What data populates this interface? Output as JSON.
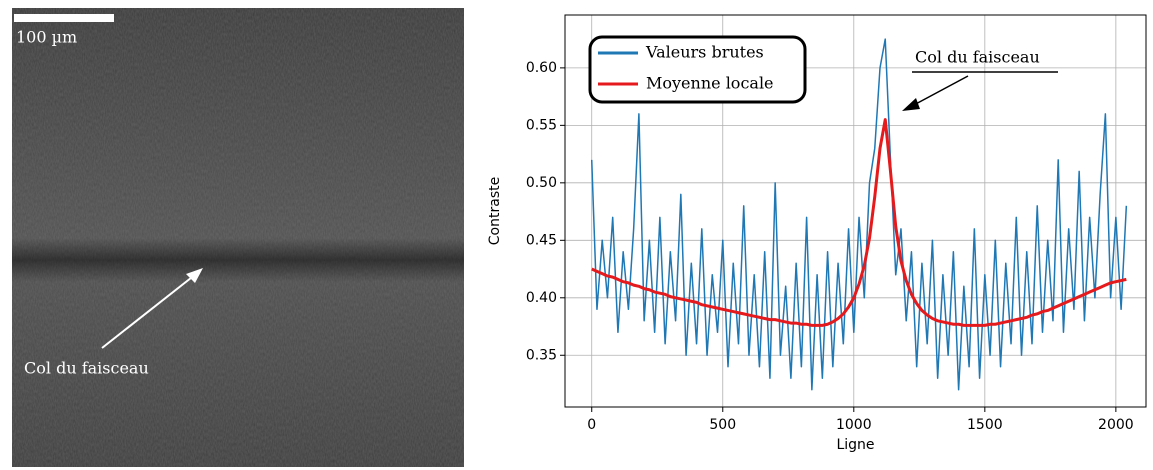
{
  "image": {
    "scale_bar": "100 µm",
    "annotation": "Col du faisceau"
  },
  "chart_data": {
    "type": "line",
    "xlabel": "Ligne",
    "ylabel": "Contraste",
    "annotation": "Col du faisceau",
    "legend": "upper left",
    "grid": true,
    "xlim": [
      -102,
      2115
    ],
    "ylim": [
      0.305,
      0.646
    ],
    "xticks": [
      0,
      500,
      1000,
      1500,
      2000
    ],
    "yticks": [
      0.35,
      {
        "value": 0.4,
        "label": "0.40"
      },
      0.45,
      {
        "value": 0.5,
        "label": "0.50"
      },
      0.55,
      {
        "value": 0.6,
        "label": "0.60"
      }
    ],
    "x": [
      0,
      20,
      40,
      60,
      80,
      100,
      120,
      140,
      160,
      180,
      200,
      220,
      240,
      260,
      280,
      300,
      320,
      340,
      360,
      380,
      400,
      420,
      440,
      460,
      480,
      500,
      520,
      540,
      560,
      580,
      600,
      620,
      640,
      660,
      680,
      700,
      720,
      740,
      760,
      780,
      800,
      820,
      840,
      860,
      880,
      900,
      920,
      940,
      960,
      980,
      1000,
      1020,
      1040,
      1060,
      1080,
      1100,
      1120,
      1140,
      1160,
      1180,
      1200,
      1220,
      1240,
      1260,
      1280,
      1300,
      1320,
      1340,
      1360,
      1380,
      1400,
      1420,
      1440,
      1460,
      1480,
      1500,
      1520,
      1540,
      1560,
      1580,
      1600,
      1620,
      1640,
      1660,
      1680,
      1700,
      1720,
      1740,
      1760,
      1780,
      1800,
      1820,
      1840,
      1860,
      1880,
      1900,
      1920,
      1940,
      1960,
      1980,
      2000,
      2020,
      2040
    ],
    "series": [
      {
        "name": "Valeurs brutes",
        "color": "#1f77b4",
        "width": 1.5,
        "values": [
          0.52,
          0.39,
          0.45,
          0.4,
          0.47,
          0.37,
          0.44,
          0.39,
          0.46,
          0.56,
          0.38,
          0.45,
          0.37,
          0.47,
          0.36,
          0.44,
          0.38,
          0.49,
          0.35,
          0.43,
          0.36,
          0.46,
          0.35,
          0.42,
          0.37,
          0.45,
          0.34,
          0.43,
          0.36,
          0.48,
          0.35,
          0.42,
          0.34,
          0.44,
          0.33,
          0.5,
          0.35,
          0.41,
          0.33,
          0.43,
          0.34,
          0.47,
          0.32,
          0.42,
          0.33,
          0.44,
          0.34,
          0.43,
          0.36,
          0.46,
          0.37,
          0.47,
          0.4,
          0.5,
          0.53,
          0.6,
          0.625,
          0.52,
          0.42,
          0.46,
          0.38,
          0.44,
          0.34,
          0.43,
          0.36,
          0.45,
          0.33,
          0.42,
          0.35,
          0.44,
          0.32,
          0.41,
          0.34,
          0.46,
          0.33,
          0.42,
          0.35,
          0.45,
          0.34,
          0.43,
          0.36,
          0.47,
          0.35,
          0.44,
          0.36,
          0.48,
          0.37,
          0.45,
          0.38,
          0.52,
          0.37,
          0.46,
          0.39,
          0.51,
          0.38,
          0.47,
          0.4,
          0.49,
          0.56,
          0.4,
          0.47,
          0.39,
          0.48
        ]
      },
      {
        "name": "Moyenne locale",
        "color": "#e41a1c",
        "width": 3,
        "values": [
          0.425,
          0.423,
          0.421,
          0.419,
          0.418,
          0.416,
          0.414,
          0.413,
          0.411,
          0.41,
          0.408,
          0.407,
          0.405,
          0.404,
          0.403,
          0.401,
          0.4,
          0.399,
          0.398,
          0.397,
          0.396,
          0.394,
          0.393,
          0.392,
          0.391,
          0.39,
          0.389,
          0.388,
          0.387,
          0.386,
          0.385,
          0.384,
          0.383,
          0.382,
          0.381,
          0.381,
          0.38,
          0.379,
          0.378,
          0.378,
          0.377,
          0.377,
          0.376,
          0.376,
          0.376,
          0.377,
          0.379,
          0.382,
          0.386,
          0.392,
          0.4,
          0.412,
          0.428,
          0.452,
          0.488,
          0.53,
          0.555,
          0.51,
          0.462,
          0.432,
          0.415,
          0.403,
          0.395,
          0.389,
          0.385,
          0.382,
          0.38,
          0.379,
          0.378,
          0.377,
          0.377,
          0.376,
          0.376,
          0.376,
          0.376,
          0.376,
          0.377,
          0.377,
          0.378,
          0.379,
          0.38,
          0.381,
          0.382,
          0.383,
          0.385,
          0.386,
          0.388,
          0.389,
          0.391,
          0.393,
          0.395,
          0.397,
          0.399,
          0.401,
          0.403,
          0.405,
          0.407,
          0.409,
          0.411,
          0.413,
          0.414,
          0.415,
          0.416
        ]
      }
    ]
  }
}
